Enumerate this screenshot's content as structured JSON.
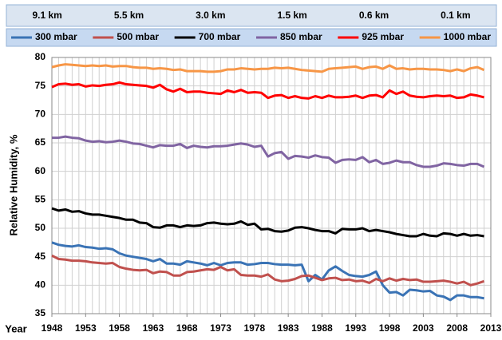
{
  "chart_data": {
    "type": "line",
    "annotations": [
      "9.1 km",
      "5.5 km",
      "3.0  km",
      "1.5  km",
      "0.6 km",
      "0.1 km"
    ],
    "xlabel": "Year",
    "ylabel": "Relative Humidity, %",
    "x": [
      1948,
      1949,
      1950,
      1951,
      1952,
      1953,
      1954,
      1955,
      1956,
      1957,
      1958,
      1959,
      1960,
      1961,
      1962,
      1963,
      1964,
      1965,
      1966,
      1967,
      1968,
      1969,
      1970,
      1971,
      1972,
      1973,
      1974,
      1975,
      1976,
      1977,
      1978,
      1979,
      1980,
      1981,
      1982,
      1983,
      1984,
      1985,
      1986,
      1987,
      1988,
      1989,
      1990,
      1991,
      1992,
      1993,
      1994,
      1995,
      1996,
      1997,
      1998,
      1999,
      2000,
      2001,
      2002,
      2003,
      2004,
      2005,
      2006,
      2007,
      2008,
      2009,
      2010,
      2011,
      2012
    ],
    "xlim": [
      1948,
      2013
    ],
    "xticks": [
      1948,
      1953,
      1958,
      1963,
      1968,
      1973,
      1978,
      1983,
      1988,
      1993,
      1998,
      2003,
      2008,
      2013
    ],
    "ylim": [
      35,
      80
    ],
    "yticks": [
      35,
      40,
      45,
      50,
      55,
      60,
      65,
      70,
      75,
      80
    ],
    "grid": true,
    "series": [
      {
        "name": "300 mbar",
        "color": "#3a73b5",
        "values": [
          47.5,
          47.1,
          46.9,
          46.8,
          47.0,
          46.7,
          46.6,
          46.4,
          46.5,
          46.3,
          45.6,
          45.2,
          45.0,
          44.8,
          44.6,
          44.2,
          44.6,
          43.8,
          43.8,
          43.6,
          44.2,
          44.0,
          43.8,
          43.5,
          43.9,
          43.5,
          43.9,
          44.0,
          44.0,
          43.6,
          43.7,
          43.9,
          43.9,
          43.7,
          43.6,
          43.6,
          43.5,
          43.6,
          40.7,
          41.8,
          41.0,
          42.6,
          43.3,
          42.5,
          41.8,
          41.6,
          41.5,
          41.8,
          42.4,
          40.0,
          38.7,
          38.8,
          38.2,
          39.2,
          39.1,
          38.9,
          39.0,
          38.2,
          38.0,
          37.4,
          38.2,
          38.2,
          37.9,
          37.9,
          37.7
        ]
      },
      {
        "name": "500 mbar",
        "color": "#c0504d",
        "values": [
          45.2,
          44.6,
          44.5,
          44.3,
          44.3,
          44.2,
          44.0,
          43.9,
          43.8,
          43.9,
          43.2,
          42.9,
          42.7,
          42.6,
          42.7,
          42.1,
          42.4,
          42.3,
          41.7,
          41.7,
          42.3,
          42.4,
          42.6,
          42.8,
          42.7,
          43.2,
          42.6,
          42.8,
          41.8,
          41.7,
          41.7,
          41.5,
          41.9,
          41.0,
          40.7,
          40.8,
          41.1,
          41.6,
          41.7,
          41.3,
          40.9,
          41.2,
          41.3,
          40.9,
          41.0,
          40.7,
          40.8,
          40.4,
          41.1,
          40.7,
          41.2,
          40.8,
          41.1,
          40.9,
          41.0,
          40.6,
          40.6,
          40.7,
          40.8,
          40.6,
          40.3,
          40.6,
          40.0,
          40.3,
          40.7
        ]
      },
      {
        "name": "700 mbar",
        "color": "#000000",
        "values": [
          53.5,
          53.1,
          53.3,
          52.9,
          53.0,
          52.6,
          52.4,
          52.4,
          52.2,
          52.0,
          51.8,
          51.5,
          51.5,
          51.0,
          50.9,
          50.2,
          50.1,
          50.5,
          50.5,
          50.2,
          50.5,
          50.4,
          50.5,
          50.9,
          51.0,
          50.8,
          50.7,
          50.8,
          51.2,
          50.6,
          50.8,
          49.8,
          49.9,
          49.5,
          49.4,
          49.6,
          50.1,
          50.2,
          50.0,
          49.7,
          49.5,
          49.5,
          49.1,
          49.9,
          49.8,
          49.8,
          50.0,
          49.5,
          49.7,
          49.5,
          49.3,
          49.0,
          48.8,
          48.6,
          48.6,
          49.0,
          48.7,
          48.6,
          49.1,
          49.0,
          48.7,
          49.0,
          48.7,
          48.8,
          48.6
        ]
      },
      {
        "name": "850 mbar",
        "color": "#8064a2",
        "values": [
          65.9,
          65.9,
          66.1,
          65.9,
          65.8,
          65.4,
          65.2,
          65.3,
          65.1,
          65.2,
          65.4,
          65.2,
          64.9,
          64.8,
          64.5,
          64.2,
          64.6,
          64.5,
          64.5,
          64.8,
          64.1,
          64.5,
          64.3,
          64.2,
          64.4,
          64.4,
          64.5,
          64.7,
          64.9,
          64.7,
          64.3,
          64.5,
          62.6,
          63.2,
          63.4,
          62.2,
          62.7,
          62.6,
          62.4,
          62.8,
          62.5,
          62.4,
          61.5,
          62.0,
          62.1,
          62.0,
          62.5,
          61.6,
          62.0,
          61.3,
          61.5,
          61.9,
          61.6,
          61.6,
          61.1,
          60.8,
          60.8,
          61.0,
          61.4,
          61.3,
          61.1,
          61.0,
          61.3,
          61.3,
          60.8
        ]
      },
      {
        "name": "925 mbar",
        "color": "#ff0000",
        "values": [
          74.8,
          75.3,
          75.4,
          75.2,
          75.3,
          74.9,
          75.1,
          75.0,
          75.2,
          75.3,
          75.6,
          75.3,
          75.2,
          75.1,
          75.0,
          74.7,
          75.2,
          74.4,
          74.0,
          74.5,
          73.9,
          74.0,
          74.0,
          73.8,
          73.7,
          73.6,
          74.2,
          73.9,
          74.3,
          73.8,
          73.9,
          73.8,
          72.9,
          73.3,
          73.4,
          72.9,
          73.2,
          72.9,
          72.8,
          73.2,
          72.9,
          73.3,
          73.0,
          73.0,
          73.1,
          73.3,
          72.9,
          73.3,
          73.4,
          73.0,
          74.2,
          73.6,
          74.0,
          73.3,
          73.1,
          73.0,
          73.2,
          73.3,
          73.2,
          73.3,
          72.9,
          73.0,
          73.5,
          73.3,
          73.0
        ]
      },
      {
        "name": "1000 mbar",
        "color": "#f79646",
        "values": [
          78.3,
          78.6,
          78.8,
          78.7,
          78.6,
          78.5,
          78.6,
          78.5,
          78.6,
          78.4,
          78.5,
          78.5,
          78.3,
          78.2,
          78.2,
          78.0,
          78.1,
          78.0,
          77.8,
          77.9,
          77.6,
          77.6,
          77.6,
          77.5,
          77.5,
          77.6,
          77.9,
          77.9,
          78.1,
          78.0,
          77.9,
          78.0,
          78.0,
          78.2,
          78.1,
          78.2,
          78.0,
          77.8,
          77.7,
          77.6,
          77.5,
          78.0,
          78.1,
          78.2,
          78.3,
          78.4,
          78.0,
          78.3,
          78.4,
          78.0,
          78.6,
          78.0,
          78.1,
          77.9,
          78.0,
          78.0,
          77.9,
          77.9,
          77.8,
          77.6,
          77.9,
          77.6,
          78.1,
          78.3,
          77.8
        ]
      }
    ]
  }
}
